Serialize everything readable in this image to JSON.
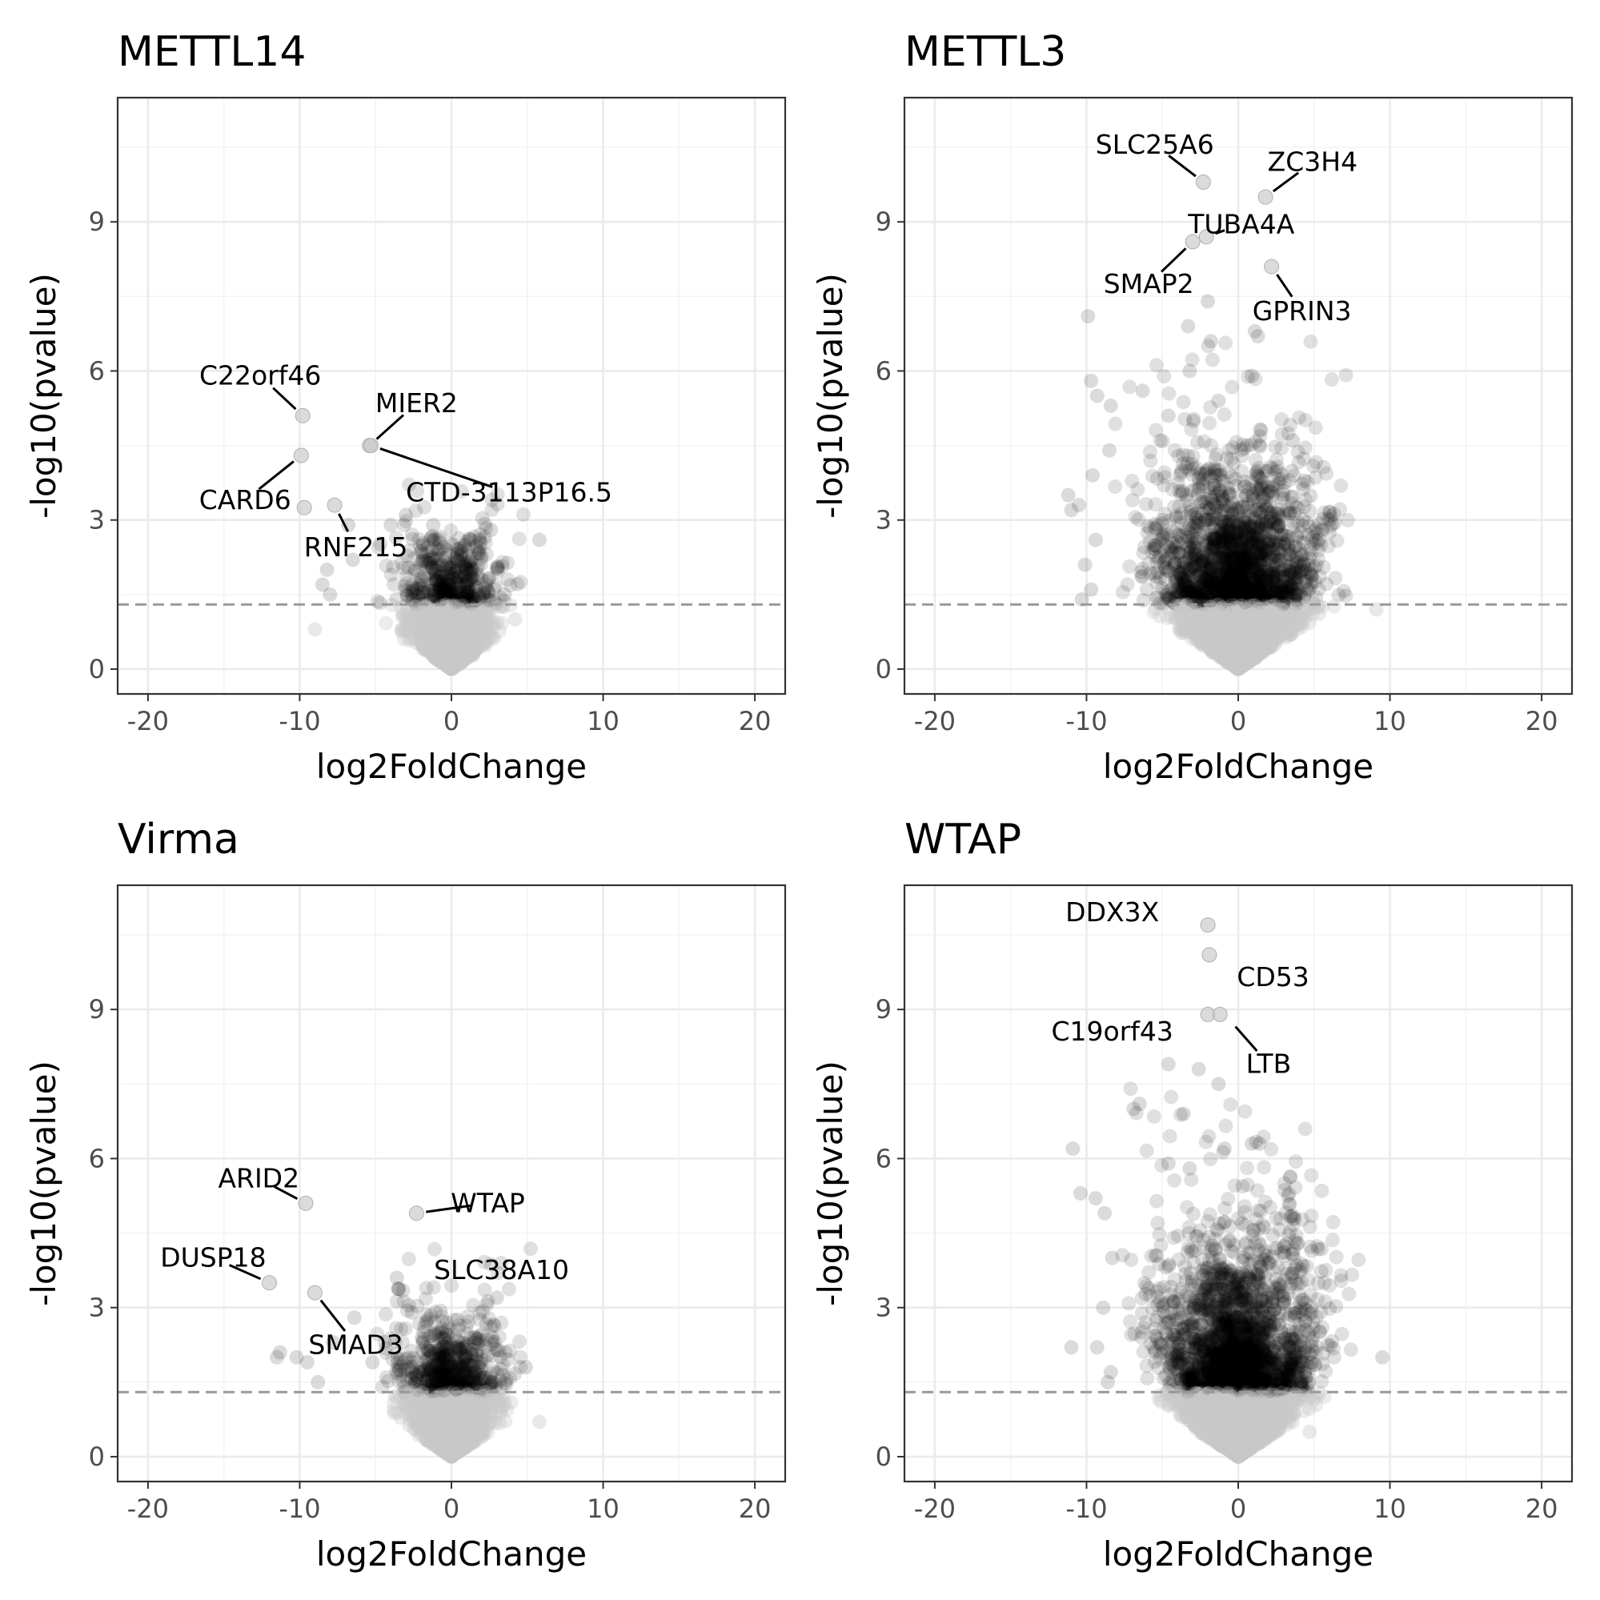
{
  "figure": {
    "x_axis_label": "log2FoldChange",
    "y_axis_label": "-log10(pvalue)",
    "x_ticks": [
      -20,
      -10,
      0,
      10,
      20
    ],
    "y_ticks": [
      0,
      3,
      6,
      9
    ],
    "threshold_y": 1.3,
    "colors": {
      "significant": "#000000",
      "nonsignificant": "#c8c8c8",
      "threshold": "#999999"
    }
  },
  "chart_data": [
    {
      "type": "scatter",
      "title": "METTL14",
      "xlabel": "log2FoldChange",
      "ylabel": "-log10(pvalue)",
      "xlim": [
        -22,
        22
      ],
      "ylim": [
        -0.5,
        11.5
      ],
      "grid": true,
      "threshold": 1.3,
      "spread": {
        "left": 3.8,
        "right": 2.0,
        "density": 1.0
      },
      "highlighted": [
        {
          "x": -9.8,
          "y": 5.1,
          "label": "C22orf46"
        },
        {
          "x": -9.9,
          "y": 4.3,
          "label": "CARD6"
        },
        {
          "x": -9.7,
          "y": 3.25,
          "label": ""
        },
        {
          "x": -5.4,
          "y": 4.5,
          "label": "MIER2"
        },
        {
          "x": -5.3,
          "y": 4.5,
          "label": "CTD-3113P16.5"
        },
        {
          "x": -7.7,
          "y": 3.3,
          "label": "RNF215"
        }
      ],
      "labels": [
        {
          "text": "C22orf46",
          "lx": -12.6,
          "ly": 5.9,
          "px": -9.8,
          "py": 5.1
        },
        {
          "text": "CARD6",
          "lx": -13.6,
          "ly": 3.4,
          "px": -9.9,
          "py": 4.3
        },
        {
          "text": "MIER2",
          "lx": -2.3,
          "ly": 5.35,
          "px": -5.4,
          "py": 4.5
        },
        {
          "text": "CTD-3113P16.5",
          "lx": 3.8,
          "ly": 3.55,
          "px": -5.3,
          "py": 4.5
        },
        {
          "text": "RNF215",
          "lx": -6.3,
          "ly": 2.45,
          "px": -7.7,
          "py": 3.3
        }
      ],
      "extra_points": [
        {
          "x": -8.5,
          "y": 1.7
        },
        {
          "x": -8.2,
          "y": 2.0
        },
        {
          "x": -8.0,
          "y": 1.5
        },
        {
          "x": -6.8,
          "y": 2.9
        },
        {
          "x": -6.5,
          "y": 2.2
        },
        {
          "x": -4.0,
          "y": 2.9
        },
        {
          "x": -3.0,
          "y": 3.1
        },
        {
          "x": -1.2,
          "y": 2.9
        },
        {
          "x": 2.6,
          "y": 2.8
        },
        {
          "x": 5.8,
          "y": 2.6
        },
        {
          "x": 3.5,
          "y": 1.5
        },
        {
          "x": 4.2,
          "y": 1.0
        },
        {
          "x": -9.0,
          "y": 0.8
        },
        {
          "x": 1.3,
          "y": 2.6
        },
        {
          "x": 1.0,
          "y": 2.0
        }
      ]
    },
    {
      "type": "scatter",
      "title": "METTL3",
      "xlabel": "log2FoldChange",
      "ylabel": "-log10(pvalue)",
      "xlim": [
        -22,
        22
      ],
      "ylim": [
        -0.5,
        11.5
      ],
      "grid": true,
      "threshold": 1.3,
      "spread": {
        "left": 6.5,
        "right": 3.2,
        "density": 2.0
      },
      "highlighted": [
        {
          "x": -2.3,
          "y": 9.8,
          "label": "SLC25A6"
        },
        {
          "x": 1.8,
          "y": 9.5,
          "label": "ZC3H4"
        },
        {
          "x": -2.1,
          "y": 8.7,
          "label": "TUBA4A"
        },
        {
          "x": -3.0,
          "y": 8.6,
          "label": "SMAP2"
        },
        {
          "x": 2.2,
          "y": 8.1,
          "label": "GPRIN3"
        }
      ],
      "labels": [
        {
          "text": "SLC25A6",
          "lx": -5.5,
          "ly": 10.55,
          "px": -2.3,
          "py": 9.8
        },
        {
          "text": "ZC3H4",
          "lx": 4.9,
          "ly": 10.2,
          "px": 1.8,
          "py": 9.5
        },
        {
          "text": "TUBA4A",
          "lx": 0.2,
          "ly": 8.95,
          "px": -2.1,
          "py": 8.7
        },
        {
          "text": "SMAP2",
          "lx": -5.9,
          "ly": 7.75,
          "px": -3.0,
          "py": 8.6
        },
        {
          "text": "GPRIN3",
          "lx": 4.2,
          "ly": 7.2,
          "px": 2.2,
          "py": 8.1
        }
      ],
      "extra_points": [
        {
          "x": -9.9,
          "y": 7.1
        },
        {
          "x": -9.7,
          "y": 5.8
        },
        {
          "x": -9.3,
          "y": 5.5
        },
        {
          "x": -8.4,
          "y": 5.3
        },
        {
          "x": -8.5,
          "y": 4.4
        },
        {
          "x": -11.2,
          "y": 3.5
        },
        {
          "x": -11.0,
          "y": 3.2
        },
        {
          "x": -10.5,
          "y": 3.3
        },
        {
          "x": -9.6,
          "y": 3.9
        },
        {
          "x": -10.1,
          "y": 2.1
        },
        {
          "x": -9.4,
          "y": 2.6
        },
        {
          "x": -9.7,
          "y": 1.6
        },
        {
          "x": -10.3,
          "y": 1.4
        },
        {
          "x": -4.6,
          "y": 5.1
        },
        {
          "x": -6.3,
          "y": 5.6
        },
        {
          "x": -3.2,
          "y": 6.0
        },
        {
          "x": -3.3,
          "y": 6.9
        },
        {
          "x": -1.8,
          "y": 6.6
        },
        {
          "x": -2.0,
          "y": 7.4
        },
        {
          "x": 1.1,
          "y": 6.8
        },
        {
          "x": 1.3,
          "y": 6.7
        },
        {
          "x": -1.3,
          "y": 5.4
        },
        {
          "x": 0.9,
          "y": 5.9
        },
        {
          "x": 3.6,
          "y": 4.6
        },
        {
          "x": 9.1,
          "y": 1.2
        },
        {
          "x": 4.8,
          "y": 1.7
        },
        {
          "x": 3.0,
          "y": 2.7
        }
      ]
    },
    {
      "type": "scatter",
      "title": "Virma",
      "xlabel": "log2FoldChange",
      "ylabel": "-log10(pvalue)",
      "xlim": [
        -22,
        22
      ],
      "ylim": [
        -0.5,
        11.5
      ],
      "grid": true,
      "threshold": 1.3,
      "spread": {
        "left": 4.2,
        "right": 2.3,
        "density": 1.1
      },
      "highlighted": [
        {
          "x": -9.6,
          "y": 5.1,
          "label": "ARID2"
        },
        {
          "x": -2.3,
          "y": 4.9,
          "label": "WTAP"
        },
        {
          "x": -12.0,
          "y": 3.5,
          "label": "DUSP18"
        },
        {
          "x": -9.0,
          "y": 3.3,
          "label": "SMAD3"
        }
      ],
      "labels": [
        {
          "text": "ARID2",
          "lx": -12.7,
          "ly": 5.6,
          "px": -9.6,
          "py": 5.1
        },
        {
          "text": "WTAP",
          "lx": 2.4,
          "ly": 5.1,
          "px": -2.3,
          "py": 4.9
        },
        {
          "text": "SLC38A10",
          "lx": 3.3,
          "ly": 3.75,
          "px": null,
          "py": null
        },
        {
          "text": "DUSP18",
          "lx": -15.7,
          "ly": 4.0,
          "px": -12.0,
          "py": 3.5
        },
        {
          "text": "SMAD3",
          "lx": -6.3,
          "ly": 2.25,
          "px": -9.0,
          "py": 3.3
        }
      ],
      "extra_points": [
        {
          "x": -11.3,
          "y": 2.1
        },
        {
          "x": -11.5,
          "y": 2.0
        },
        {
          "x": -10.2,
          "y": 2.0
        },
        {
          "x": -9.5,
          "y": 1.9
        },
        {
          "x": -8.8,
          "y": 1.5
        },
        {
          "x": -7.8,
          "y": 2.3
        },
        {
          "x": -6.4,
          "y": 2.8
        },
        {
          "x": -5.2,
          "y": 1.9
        },
        {
          "x": -3.6,
          "y": 3.6
        },
        {
          "x": -2.6,
          "y": 2.9
        },
        {
          "x": 3.0,
          "y": 3.2
        },
        {
          "x": 4.9,
          "y": 1.8
        },
        {
          "x": 3.4,
          "y": 1.0
        },
        {
          "x": 5.8,
          "y": 0.7
        },
        {
          "x": 2.7,
          "y": 2.4
        }
      ]
    },
    {
      "type": "scatter",
      "title": "WTAP",
      "xlabel": "log2FoldChange",
      "ylabel": "-log10(pvalue)",
      "xlim": [
        -22,
        22
      ],
      "ylim": [
        -0.5,
        11.5
      ],
      "grid": true,
      "threshold": 1.3,
      "spread": {
        "left": 6.2,
        "right": 3.0,
        "density": 2.2
      },
      "highlighted": [
        {
          "x": -2.0,
          "y": 10.7,
          "label": "DDX3X"
        },
        {
          "x": -1.9,
          "y": 10.1,
          "label": "CD53"
        },
        {
          "x": -2.0,
          "y": 8.9,
          "label": "C19orf43"
        },
        {
          "x": -1.2,
          "y": 8.9,
          "label": "LTB"
        }
      ],
      "labels": [
        {
          "text": "DDX3X",
          "lx": -8.3,
          "ly": 10.95,
          "px": null,
          "py": null
        },
        {
          "text": "CD53",
          "lx": 2.3,
          "ly": 9.65,
          "px": null,
          "py": null
        },
        {
          "text": "C19orf43",
          "lx": -8.3,
          "ly": 8.55,
          "px": null,
          "py": null
        },
        {
          "text": "LTB",
          "lx": 2.0,
          "ly": 7.9,
          "px": -0.6,
          "py": 8.8
        }
      ],
      "extra_points": [
        {
          "x": -10.9,
          "y": 6.2
        },
        {
          "x": -10.4,
          "y": 5.3
        },
        {
          "x": -9.4,
          "y": 5.2
        },
        {
          "x": -8.8,
          "y": 4.9
        },
        {
          "x": -6.9,
          "y": 7.0
        },
        {
          "x": -6.5,
          "y": 7.1
        },
        {
          "x": -4.6,
          "y": 7.9
        },
        {
          "x": -3.6,
          "y": 6.9
        },
        {
          "x": -2.6,
          "y": 7.8
        },
        {
          "x": -1.3,
          "y": 7.5
        },
        {
          "x": -0.9,
          "y": 6.2
        },
        {
          "x": 0.9,
          "y": 6.3
        },
        {
          "x": 1.4,
          "y": 6.3
        },
        {
          "x": -4.6,
          "y": 5.9
        },
        {
          "x": -3.2,
          "y": 5.8
        },
        {
          "x": -8.3,
          "y": 4.0
        },
        {
          "x": -8.9,
          "y": 3.0
        },
        {
          "x": -11.0,
          "y": 2.2
        },
        {
          "x": -9.3,
          "y": 2.2
        },
        {
          "x": -8.6,
          "y": 1.5
        },
        {
          "x": -8.4,
          "y": 1.7
        },
        {
          "x": 9.5,
          "y": 2.0
        },
        {
          "x": 4.7,
          "y": 0.5
        },
        {
          "x": 4.2,
          "y": 2.0
        }
      ]
    }
  ]
}
